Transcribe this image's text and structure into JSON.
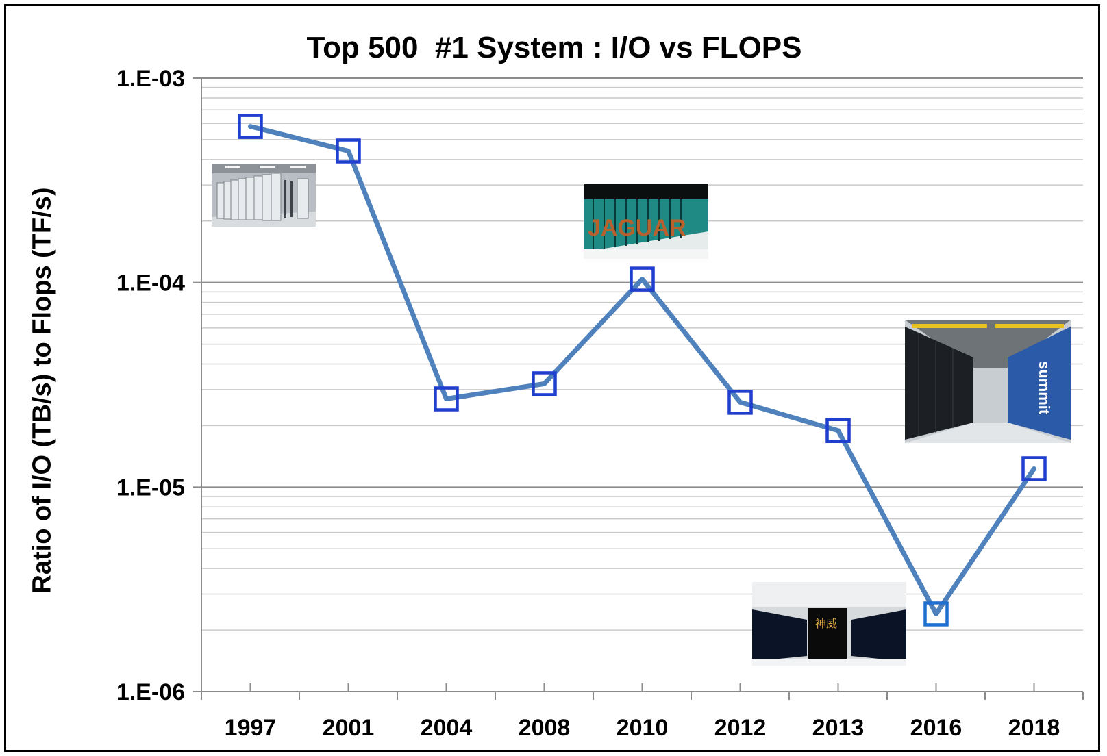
{
  "chart_data": {
    "type": "line",
    "title": "Top 500  #1 System : I/O vs FLOPS",
    "ylabel": "Ratio of I/O (TB/s) to Flops (TF/s)",
    "xlabel": "",
    "yscale": "log",
    "ylim": [
      1e-06,
      0.001
    ],
    "ytick_labels": [
      "1.E-03",
      "1.E-04",
      "1.E-05",
      "1.E-06"
    ],
    "ytick_values": [
      0.001,
      0.0001,
      1e-05,
      1e-06
    ],
    "grid": "horizontal minor and major",
    "legend": "none",
    "categories": [
      "1997",
      "2001",
      "2004",
      "2008",
      "2010",
      "2012",
      "2013",
      "2016",
      "2018"
    ],
    "series": [
      {
        "values": [
          0.00058,
          0.00044,
          2.7e-05,
          3.2e-05,
          0.000104,
          2.6e-05,
          1.89e-05,
          2.4e-06,
          1.23e-05
        ],
        "line_color": "#4F81BD",
        "marker": "square",
        "marker_color": "#1F3FCF"
      }
    ]
  },
  "images": [
    {
      "name": "asci-red-photo",
      "depicts": "rows of white server cabinets"
    },
    {
      "name": "jaguar-photo",
      "depicts": "Jaguar supercomputer",
      "text": "JAGUAR"
    },
    {
      "name": "summit-photo",
      "depicts": "Summit supercomputer aisle",
      "text": "summit"
    },
    {
      "name": "sunway-photo",
      "depicts": "Sunway TaihuLight supercomputer",
      "text": "神威"
    }
  ]
}
